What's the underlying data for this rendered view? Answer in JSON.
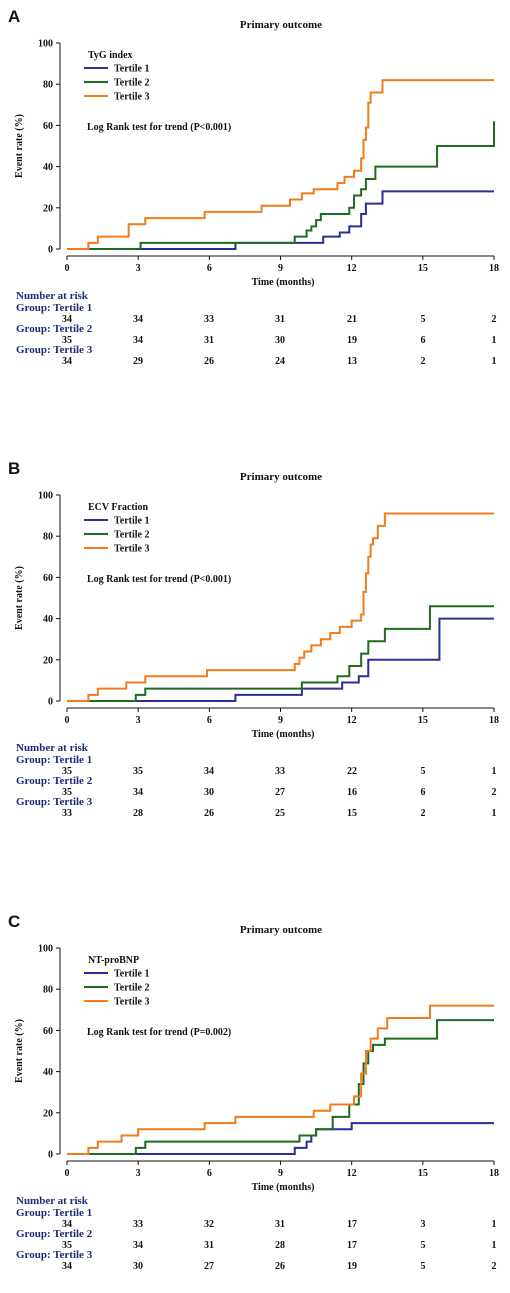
{
  "chart_data": [
    {
      "type": "line",
      "panel": "A",
      "title": "Primary outcome",
      "xlabel": "Time (months)",
      "ylabel": "Event rate (%)",
      "xlim": [
        0,
        18
      ],
      "ylim": [
        0,
        100
      ],
      "xticks": [
        "0",
        "3",
        "6",
        "9",
        "12",
        "15",
        "18"
      ],
      "yticks": [
        "0",
        "20",
        "40",
        "60",
        "80",
        "100"
      ],
      "legend_title": "TyG index",
      "annotation": "Log Rank test for trend (P<0.001)",
      "series": [
        {
          "name": "Tertile 1",
          "color": "#2b2f94",
          "x": [
            0,
            3.1,
            7.1,
            9.6,
            10.8,
            11.5,
            11.9,
            12.4,
            12.6,
            13.3,
            18
          ],
          "y": [
            0,
            0,
            3,
            3,
            6,
            8,
            11,
            17,
            22,
            28,
            28
          ]
        },
        {
          "name": "Tertile 2",
          "color": "#1f6b1f",
          "x": [
            0,
            3.1,
            9.6,
            10.1,
            10.3,
            10.5,
            10.7,
            10.9,
            11.1,
            11.9,
            12.1,
            12.4,
            12.6,
            13.0,
            15.1,
            15.6,
            18
          ],
          "y": [
            0,
            3,
            6,
            9,
            11,
            14,
            17,
            17,
            17,
            20,
            26,
            29,
            34,
            40,
            40,
            50,
            62
          ]
        },
        {
          "name": "Tertile 3",
          "color": "#f07c1b",
          "x": [
            0,
            0.9,
            1.3,
            2.6,
            3.3,
            5.8,
            8.2,
            9.4,
            9.9,
            10.4,
            11.4,
            11.7,
            12.1,
            12.4,
            12.5,
            12.6,
            12.7,
            12.8,
            13.3,
            18
          ],
          "y": [
            0,
            3,
            6,
            12,
            15,
            18,
            21,
            24,
            27,
            29,
            32,
            35,
            38,
            44,
            53,
            59,
            71,
            76,
            82,
            82
          ]
        }
      ],
      "risk_table": {
        "heading": "Number at risk",
        "groups": [
          {
            "label": "Group: Tertile 1",
            "values": [
              "34",
              "34",
              "33",
              "31",
              "21",
              "5",
              "2"
            ]
          },
          {
            "label": "Group: Tertile 2",
            "values": [
              "35",
              "34",
              "31",
              "30",
              "19",
              "6",
              "1"
            ]
          },
          {
            "label": "Group: Tertile 3",
            "values": [
              "34",
              "29",
              "26",
              "24",
              "13",
              "2",
              "1"
            ]
          }
        ]
      }
    },
    {
      "type": "line",
      "panel": "B",
      "title": "Primary outcome",
      "xlabel": "Time (months)",
      "ylabel": "Event rate (%)",
      "xlim": [
        0,
        18
      ],
      "ylim": [
        0,
        100
      ],
      "xticks": [
        "0",
        "3",
        "6",
        "9",
        "12",
        "15",
        "18"
      ],
      "yticks": [
        "0",
        "20",
        "40",
        "60",
        "80",
        "100"
      ],
      "legend_title": "ECV Fraction",
      "annotation": "Log Rank test for trend (P<0.001)",
      "series": [
        {
          "name": "Tertile 1",
          "color": "#2b2f94",
          "x": [
            0,
            3.3,
            7.1,
            9.9,
            11.6,
            12.3,
            12.7,
            15.7,
            18
          ],
          "y": [
            0,
            0,
            3,
            6,
            9,
            12,
            20,
            40,
            40
          ]
        },
        {
          "name": "Tertile 2",
          "color": "#1f6b1f",
          "x": [
            0,
            2.9,
            3.3,
            8.2,
            9.9,
            11.4,
            11.9,
            12.4,
            12.7,
            13.4,
            15.3,
            18
          ],
          "y": [
            0,
            3,
            6,
            6,
            9,
            12,
            17,
            23,
            29,
            35,
            46,
            46
          ]
        },
        {
          "name": "Tertile 3",
          "color": "#f07c1b",
          "x": [
            0,
            0.9,
            1.3,
            2.5,
            3.3,
            5.9,
            9.6,
            9.8,
            10.0,
            10.3,
            10.7,
            11.1,
            11.5,
            12.0,
            12.4,
            12.5,
            12.6,
            12.7,
            12.8,
            12.9,
            13.1,
            13.4,
            18
          ],
          "y": [
            0,
            3,
            6,
            9,
            12,
            15,
            18,
            21,
            24,
            27,
            30,
            33,
            36,
            39,
            42,
            53,
            62,
            70,
            76,
            79,
            85,
            91,
            91
          ]
        }
      ],
      "risk_table": {
        "heading": "Number at risk",
        "groups": [
          {
            "label": "Group: Tertile 1",
            "values": [
              "35",
              "35",
              "34",
              "33",
              "22",
              "5",
              "1"
            ]
          },
          {
            "label": "Group: Tertile 2",
            "values": [
              "35",
              "34",
              "30",
              "27",
              "16",
              "6",
              "2"
            ]
          },
          {
            "label": "Group: Tertile 3",
            "values": [
              "33",
              "28",
              "26",
              "25",
              "15",
              "2",
              "1"
            ]
          }
        ]
      }
    },
    {
      "type": "line",
      "panel": "C",
      "title": "Primary outcome",
      "xlabel": "Time (months)",
      "ylabel": "Event rate (%)",
      "xlim": [
        0,
        18
      ],
      "ylim": [
        0,
        100
      ],
      "xticks": [
        "0",
        "3",
        "6",
        "9",
        "12",
        "15",
        "18"
      ],
      "yticks": [
        "0",
        "20",
        "40",
        "60",
        "80",
        "100"
      ],
      "legend_title": "NT-proBNP",
      "annotation": "Log Rank test for trend (P=0.002)",
      "series": [
        {
          "name": "Tertile 1",
          "color": "#2b2f94",
          "x": [
            0,
            2.9,
            9.6,
            10.1,
            10.3,
            10.5,
            12.0,
            18
          ],
          "y": [
            0,
            0,
            3,
            6,
            9,
            12,
            15,
            15
          ]
        },
        {
          "name": "Tertile 2",
          "color": "#1f6b1f",
          "x": [
            0,
            2.9,
            3.3,
            8.1,
            9.8,
            10.5,
            11.2,
            11.9,
            12.3,
            12.5,
            12.7,
            12.9,
            13.4,
            15.6,
            18
          ],
          "y": [
            0,
            3,
            6,
            6,
            9,
            12,
            18,
            24,
            34,
            44,
            50,
            53,
            56,
            65,
            65
          ]
        },
        {
          "name": "Tertile 3",
          "color": "#f07c1b",
          "x": [
            0,
            0.9,
            1.3,
            2.3,
            3.0,
            4.3,
            5.8,
            7.1,
            10.4,
            11.1,
            12.1,
            12.4,
            12.6,
            12.8,
            13.1,
            13.5,
            15.3,
            18
          ],
          "y": [
            0,
            3,
            6,
            9,
            12,
            12,
            15,
            18,
            21,
            24,
            28,
            39,
            50,
            56,
            61,
            66,
            72,
            72
          ]
        }
      ],
      "risk_table": {
        "heading": "Number at risk",
        "groups": [
          {
            "label": "Group: Tertile 1",
            "values": [
              "34",
              "33",
              "32",
              "31",
              "17",
              "3",
              "1"
            ]
          },
          {
            "label": "Group: Tertile 2",
            "values": [
              "35",
              "34",
              "31",
              "28",
              "17",
              "5",
              "1"
            ]
          },
          {
            "label": "Group: Tertile 3",
            "values": [
              "34",
              "30",
              "27",
              "26",
              "19",
              "5",
              "2"
            ]
          }
        ]
      }
    }
  ]
}
